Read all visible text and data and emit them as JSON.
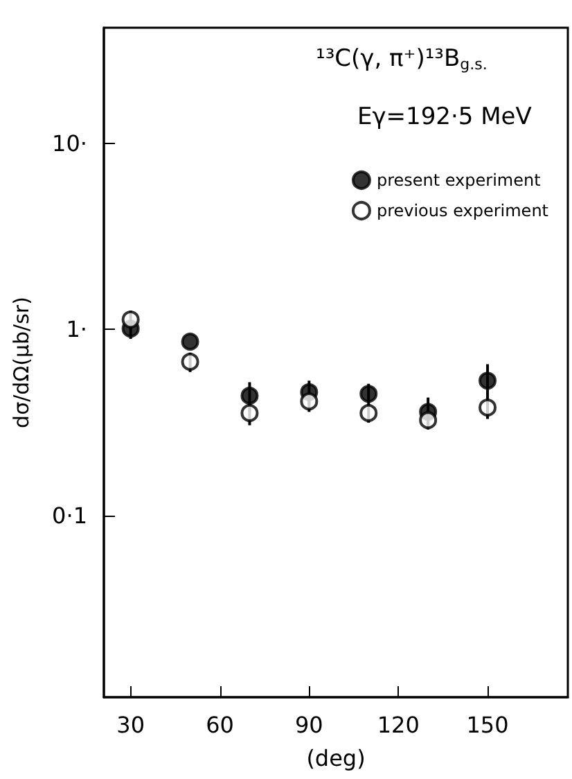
{
  "chart_data": {
    "type": "scatter",
    "title": "¹³C(γ, π⁺)¹³B$_{g.s.}$",
    "subtitle": "Eγ=192·5 MeV",
    "ylabel": "dσ/dΩ(μb/sr)",
    "xlabel": "(deg)",
    "x": [
      30,
      50,
      70,
      90,
      110,
      130,
      150
    ],
    "series": [
      {
        "name": "present experiment",
        "color": "#000000",
        "marker": "circle",
        "values": [
          1.01,
          0.86,
          0.44,
          0.46,
          0.45,
          0.36,
          0.53
        ],
        "errors": [
          0.12,
          null,
          0.08,
          0.07,
          0.06,
          0.07,
          0.12
        ]
      },
      {
        "name": "previous experiment",
        "color": "#000000",
        "marker": "open circle",
        "values": [
          1.13,
          0.67,
          0.355,
          0.41,
          0.355,
          0.325,
          0.38
        ],
        "errors": [
          0.13,
          0.08,
          0.05,
          0.05,
          0.04,
          0.035,
          0.05
        ]
      }
    ],
    "xlim": [
      21,
      177
    ],
    "xticks": [
      30,
      60,
      90,
      120,
      150
    ],
    "ylim": [
      0.0105,
      42
    ],
    "yticks": [
      {
        "value": 10,
        "label": "10·"
      },
      {
        "value": 1,
        "label": "1·"
      },
      {
        "value": 0.1,
        "label": "0·1"
      }
    ],
    "log": "y",
    "grid": false,
    "legend": "top right"
  }
}
